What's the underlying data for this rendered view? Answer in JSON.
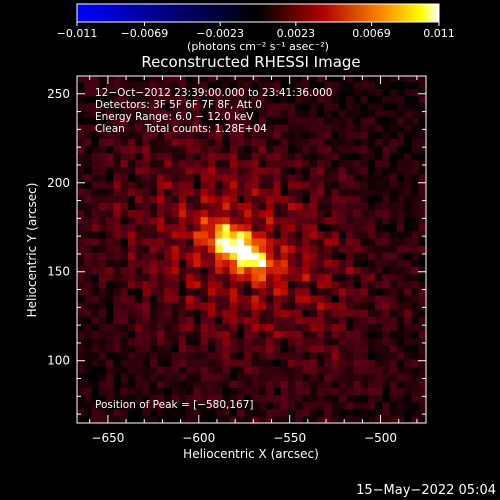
{
  "colors": {
    "background": "#000000",
    "foreground": "#ffffff",
    "colortable": [
      "#0000ff",
      "#000000",
      "#ff0000",
      "#ffff00",
      "#ffffff"
    ]
  },
  "chart_data": {
    "type": "heatmap",
    "title": "Reconstructed RHESSI Image",
    "xlabel": "Heliocentric X (arcsec)",
    "ylabel": "Heliocentric Y (arcsec)",
    "xlim": [
      -667,
      -475
    ],
    "ylim": [
      65,
      260
    ],
    "xticks": [
      -650,
      -600,
      -550,
      -500
    ],
    "yticks": [
      100,
      150,
      200,
      250
    ],
    "grid": false,
    "colorbar": {
      "position": "top",
      "min": -0.011,
      "max": 0.011,
      "tick_values": [
        -0.011,
        -0.0069,
        -0.0023,
        0.0023,
        0.0069,
        0.011
      ],
      "tick_labels": [
        "−0.011",
        "−0.0069",
        "−0.0023",
        "0.0023",
        "0.0069",
        "0.011"
      ],
      "units": "(photons cm⁻² s⁻¹ asec⁻²)"
    },
    "info_lines": [
      "12−Oct−2012 23:39:00.000 to 23:41:36.000",
      "Detectors: 3F 5F 6F 7F 8F, Att 0",
      "Energy Range: 6.0 − 12.0 keV",
      "Clean      Total counts: 1.28E+04"
    ],
    "peak_text": "Position of Peak = [−580,167]",
    "peak": {
      "x": -580,
      "y": 167,
      "value": 0.011
    },
    "source": {
      "center_x": -578,
      "center_y": 163,
      "major_fwhm_arcsec": 32,
      "minor_fwhm_arcsec": 14,
      "angle_deg": -35
    },
    "date_stamp": "15−May−2022 05:04"
  }
}
